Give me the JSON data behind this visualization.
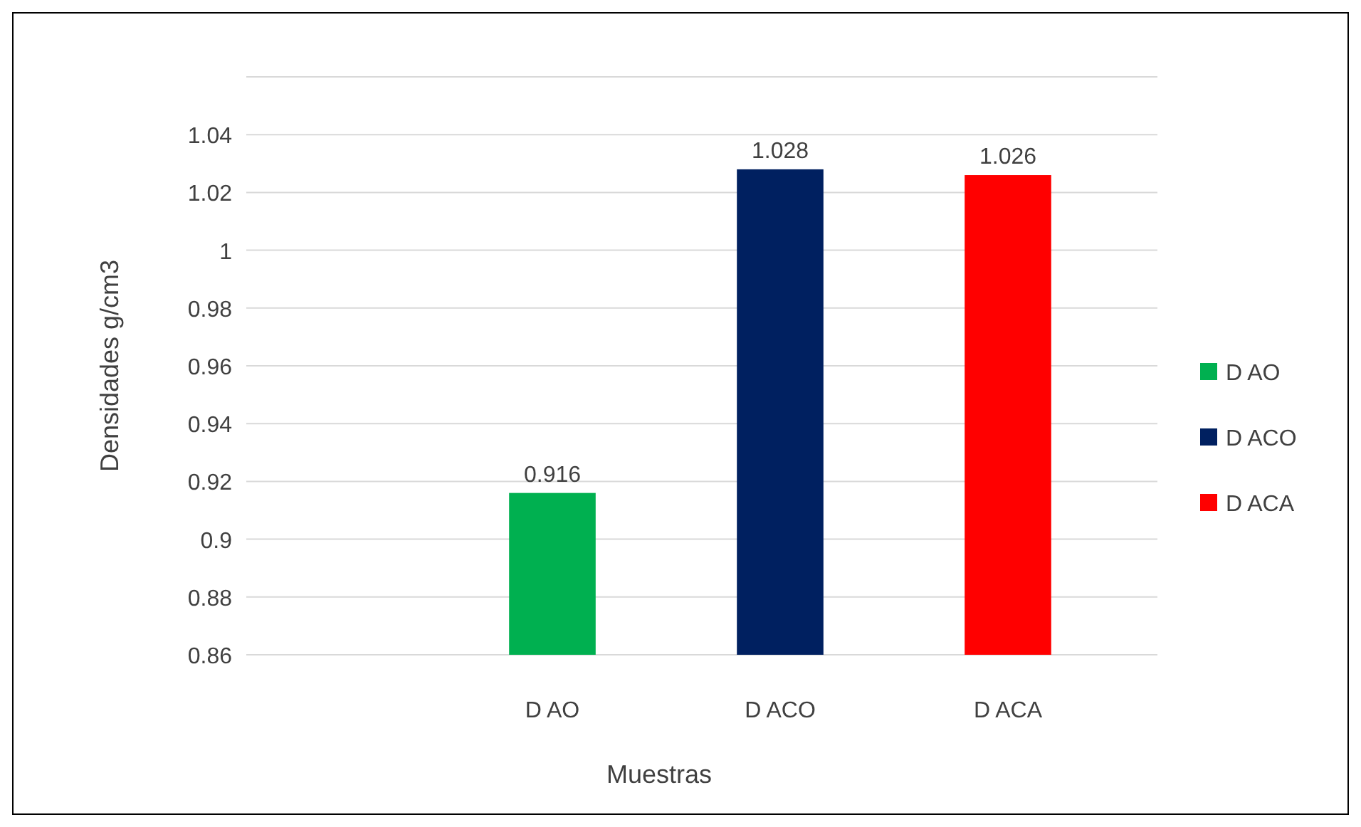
{
  "chart_data": {
    "type": "bar",
    "ylabel": "Densidades g/cm3",
    "xlabel": "Muestras",
    "categories": [
      "D AO",
      "D ACO",
      "D ACA"
    ],
    "series": [
      {
        "name": "D AO",
        "color": "#00b050",
        "values": [
          0.916,
          null,
          null
        ]
      },
      {
        "name": "D ACO",
        "color": "#002060",
        "values": [
          null,
          1.028,
          null
        ]
      },
      {
        "name": "D ACA",
        "color": "#ff0000",
        "values": [
          null,
          null,
          1.026
        ]
      }
    ],
    "ylim": [
      0.86,
      1.06
    ],
    "yticks": [
      0.86,
      0.88,
      0.9,
      0.92,
      0.94,
      0.96,
      0.98,
      1,
      1.02,
      1.04,
      {
        "value": 1.06,
        "label": null
      }
    ],
    "grid": true,
    "legend": "right",
    "data_labels": true
  }
}
